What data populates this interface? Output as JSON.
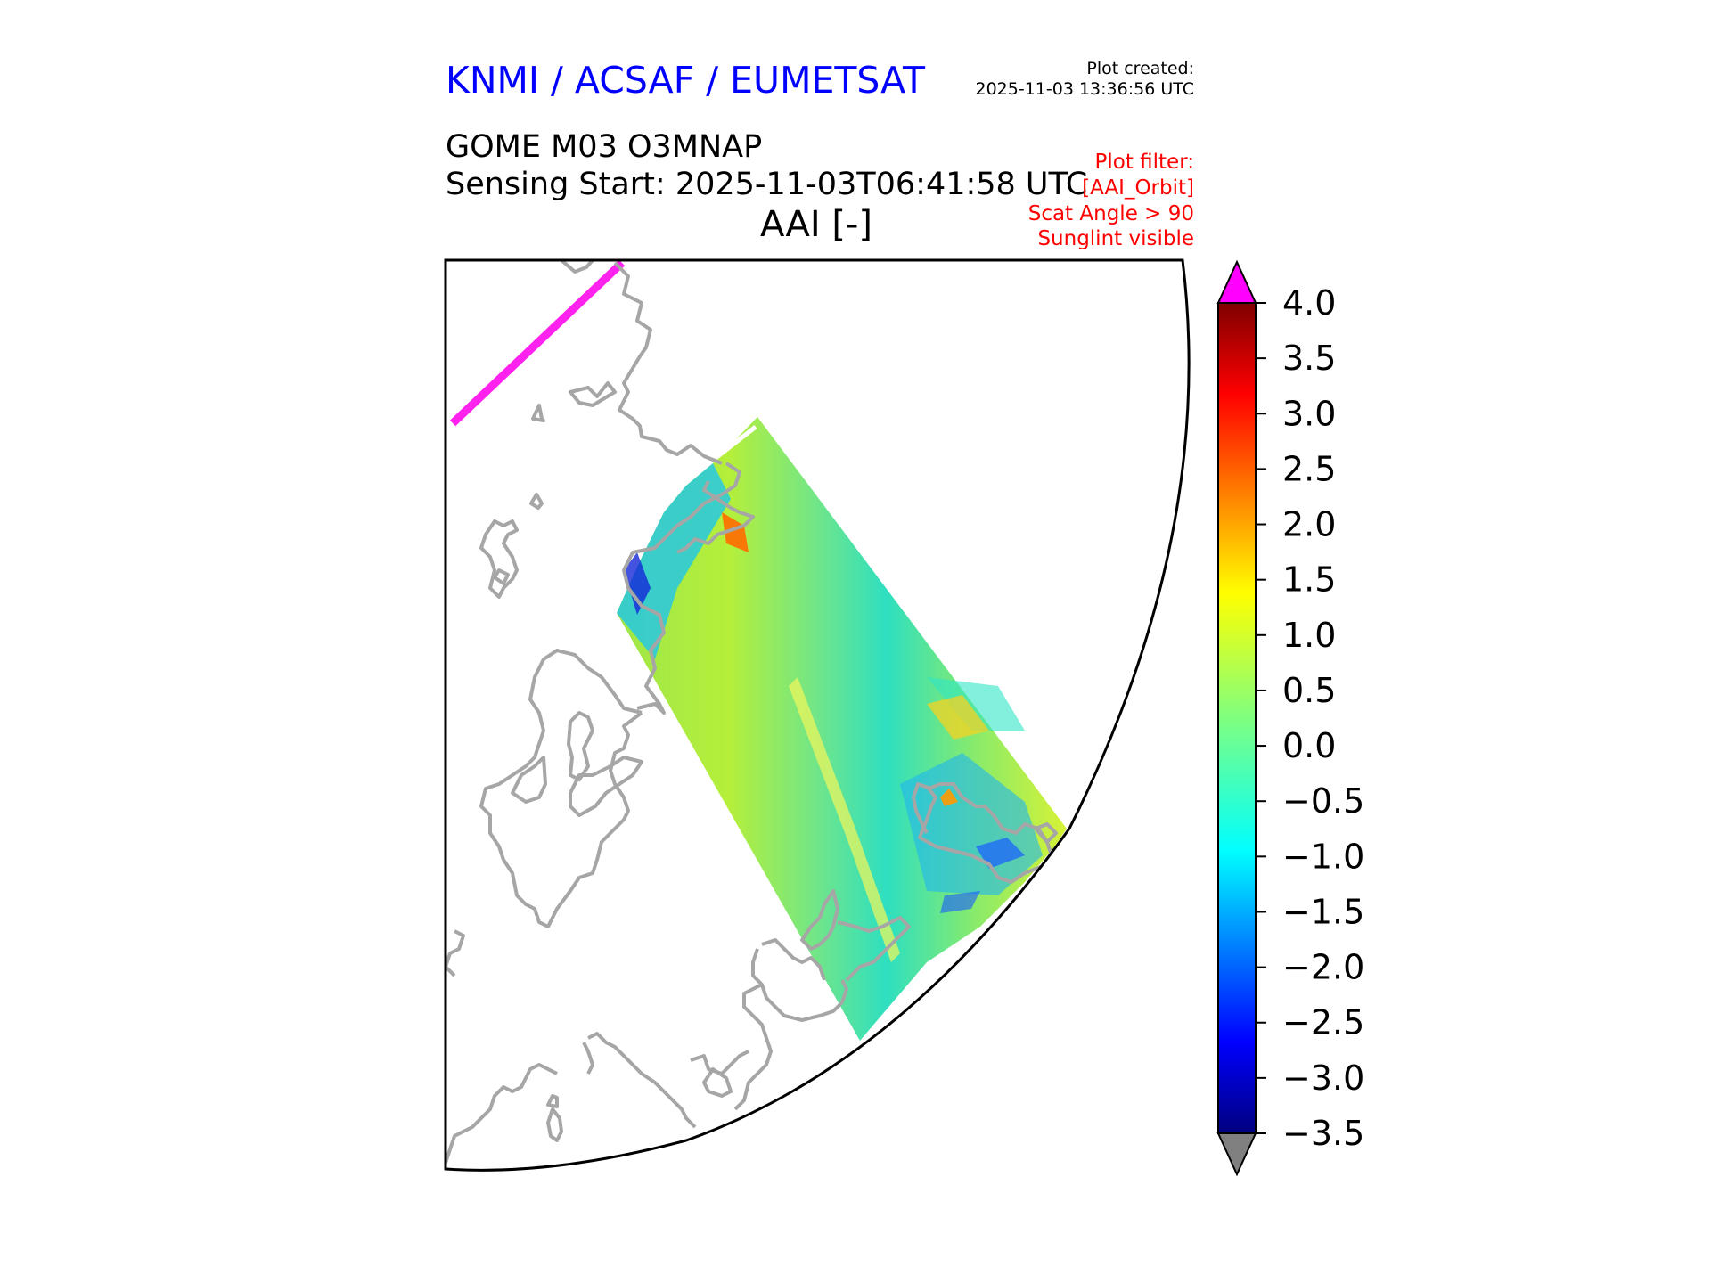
{
  "header": {
    "organization": "KNMI / ACSAF / EUMETSAT",
    "plot_created_label": "Plot created:",
    "plot_created_time": "2025-11-03 13:36:56 UTC",
    "product": "GOME M03 O3MNAP",
    "sensing_start": "Sensing Start: 2025-11-03T06:41:58 UTC",
    "variable": "AAI [-]"
  },
  "plot_filter": [
    "Plot filter:",
    "[AAI_Orbit]",
    "Scat Angle > 90",
    "Sunglint visible"
  ],
  "colors": {
    "title": "#0000ff",
    "filter_text": "#ff0000",
    "coastline": "#a6a6a6",
    "over_range": "#ff00ff",
    "under_range": "#808080"
  },
  "colorbar": {
    "colormap": "jet",
    "min": -3.5,
    "max": 4.0,
    "extend": "both",
    "ticks": [
      "4.0",
      "3.5",
      "3.0",
      "2.5",
      "2.0",
      "1.5",
      "1.0",
      "0.5",
      "0.0",
      "−0.5",
      "−1.0",
      "−1.5",
      "−2.0",
      "−2.5",
      "−3.0",
      "−3.5"
    ]
  },
  "map": {
    "projection": "polar stereographic (sector)",
    "region": "Europe",
    "coastlines": true,
    "swath_values_approx": {
      "typical_range": [
        -1.0,
        1.5
      ],
      "local_max": 2.5,
      "local_min": -3.0
    }
  }
}
